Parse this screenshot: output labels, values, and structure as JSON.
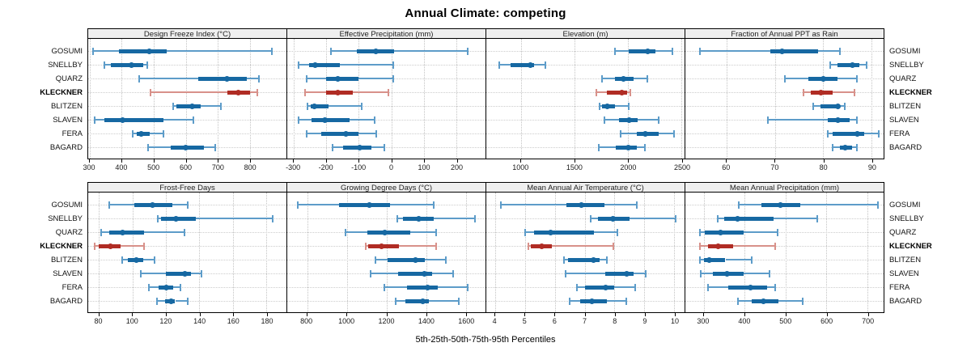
{
  "title": "Annual Climate: competing",
  "xlabel": "5th-25th-50th-75th-95th Percentiles",
  "sites": [
    "GOSUMI",
    "SNELLBY",
    "QUARZ",
    "KLECKNER",
    "BLITZEN",
    "SLAVEN",
    "FERA",
    "BAGARD"
  ],
  "highlight_site": "KLECKNER",
  "percentiles": [
    "5th",
    "25th",
    "50th",
    "75th",
    "95th"
  ],
  "colors": {
    "blue_dark": "#1668a2",
    "blue_light": "#5d9cc9",
    "red_dark": "#b02c24",
    "red_light": "#d8918a",
    "header_bg": "#efefef",
    "grid": "#c8c8c8",
    "border": "#000000"
  },
  "chart_data": [
    {
      "type": "percentile-dotplot",
      "title": "Design Freeze Index (°C)",
      "axis": {
        "min": 295,
        "max": 915,
        "ticks": [
          300,
          400,
          500,
          600,
          700,
          800
        ]
      },
      "series": [
        {
          "site": "GOSUMI",
          "values": [
            310,
            390,
            485,
            540,
            870
          ]
        },
        {
          "site": "SNELLBY",
          "values": [
            345,
            365,
            430,
            468,
            480
          ]
        },
        {
          "site": "QUARZ",
          "values": [
            455,
            640,
            730,
            790,
            830
          ]
        },
        {
          "site": "KLECKNER",
          "values": [
            490,
            730,
            764,
            800,
            825
          ]
        },
        {
          "site": "BLITZEN",
          "values": [
            560,
            572,
            620,
            648,
            710
          ]
        },
        {
          "site": "SLAVEN",
          "values": [
            315,
            345,
            403,
            530,
            625
          ]
        },
        {
          "site": "FERA",
          "values": [
            435,
            448,
            460,
            487,
            530
          ]
        },
        {
          "site": "BAGARD",
          "values": [
            482,
            553,
            600,
            658,
            693
          ]
        }
      ]
    },
    {
      "type": "percentile-dotplot",
      "title": "Effective Precipitation (mm)",
      "axis": {
        "min": -320,
        "max": 290,
        "ticks": [
          -300,
          -200,
          -100,
          0,
          100,
          200
        ]
      },
      "series": [
        {
          "site": "GOSUMI",
          "values": [
            -185,
            -105,
            -48,
            8,
            235
          ]
        },
        {
          "site": "SNELLBY",
          "values": [
            -285,
            -252,
            -235,
            -158,
            5
          ]
        },
        {
          "site": "QUARZ",
          "values": [
            -260,
            -200,
            -165,
            -100,
            5
          ]
        },
        {
          "site": "KLECKNER",
          "values": [
            -265,
            -200,
            -165,
            -118,
            -8
          ]
        },
        {
          "site": "BLITZEN",
          "values": [
            -258,
            -248,
            -236,
            -193,
            -91
          ]
        },
        {
          "site": "SLAVEN",
          "values": [
            -285,
            -245,
            -205,
            -128,
            -52
          ]
        },
        {
          "site": "FERA",
          "values": [
            -260,
            -215,
            -140,
            -100,
            -45
          ]
        },
        {
          "site": "BAGARD",
          "values": [
            -180,
            -148,
            -98,
            -62,
            -22
          ]
        }
      ]
    },
    {
      "type": "percentile-dotplot",
      "title": "Elevation (m)",
      "axis": {
        "min": 675,
        "max": 2530,
        "ticks": [
          1000,
          1500,
          2000,
          2500
        ]
      },
      "series": [
        {
          "site": "GOSUMI",
          "values": [
            1880,
            2005,
            2185,
            2255,
            2415
          ]
        },
        {
          "site": "SNELLBY",
          "values": [
            795,
            900,
            1085,
            1125,
            1225
          ]
        },
        {
          "site": "QUARZ",
          "values": [
            1760,
            1880,
            1960,
            2055,
            2180
          ]
        },
        {
          "site": "KLECKNER",
          "values": [
            1705,
            1800,
            1940,
            1990,
            2025
          ]
        },
        {
          "site": "BLITZEN",
          "values": [
            1735,
            1755,
            1810,
            1880,
            2010
          ]
        },
        {
          "site": "SLAVEN",
          "values": [
            1780,
            1920,
            2010,
            2090,
            2290
          ]
        },
        {
          "site": "FERA",
          "values": [
            1930,
            2085,
            2160,
            2285,
            2435
          ]
        },
        {
          "site": "BAGARD",
          "values": [
            1725,
            1890,
            2000,
            2080,
            2160
          ]
        }
      ]
    },
    {
      "type": "percentile-dotplot",
      "title": "Fraction of Annual PPT as Rain",
      "axis": {
        "min": 51.5,
        "max": 92.5,
        "ticks": [
          60,
          70,
          80,
          90
        ]
      },
      "series": [
        {
          "site": "GOSUMI",
          "values": [
            54.5,
            69,
            71.5,
            79,
            83.5
          ]
        },
        {
          "site": "SNELLBY",
          "values": [
            81.5,
            83,
            86,
            87.5,
            89
          ]
        },
        {
          "site": "QUARZ",
          "values": [
            72,
            77,
            80,
            83,
            87
          ]
        },
        {
          "site": "KLECKNER",
          "values": [
            76,
            77.5,
            79.5,
            82,
            86.5
          ]
        },
        {
          "site": "BLITZEN",
          "values": [
            78,
            79.5,
            83,
            83.5,
            84.5
          ]
        },
        {
          "site": "SLAVEN",
          "values": [
            68.5,
            81,
            83,
            85.5,
            87
          ]
        },
        {
          "site": "FERA",
          "values": [
            81,
            82,
            87,
            88.5,
            91.5
          ]
        },
        {
          "site": "BAGARD",
          "values": [
            82,
            83.5,
            84.5,
            86,
            87
          ]
        }
      ]
    },
    {
      "type": "percentile-dotplot",
      "title": "Frost-Free Days",
      "axis": {
        "min": 73.5,
        "max": 192,
        "ticks": [
          80,
          100,
          120,
          140,
          160,
          180
        ]
      },
      "series": [
        {
          "site": "GOSUMI",
          "values": [
            86,
            101,
            112,
            124,
            133
          ]
        },
        {
          "site": "SNELLBY",
          "values": [
            115,
            117,
            126,
            138,
            184
          ]
        },
        {
          "site": "QUARZ",
          "values": [
            81,
            86,
            94,
            107,
            131
          ]
        },
        {
          "site": "KLECKNER",
          "values": [
            77.5,
            80,
            87,
            93,
            107
          ]
        },
        {
          "site": "BLITZEN",
          "values": [
            94,
            97,
            102.5,
            106.5,
            113
          ]
        },
        {
          "site": "SLAVEN",
          "values": [
            105,
            120,
            131.5,
            135,
            141
          ]
        },
        {
          "site": "FERA",
          "values": [
            110,
            115.5,
            120,
            124.5,
            128.5
          ]
        },
        {
          "site": "BAGARD",
          "values": [
            114.5,
            119.5,
            123,
            125.5,
            133
          ]
        }
      ]
    },
    {
      "type": "percentile-dotplot",
      "title": "Growing Degree Days (°C)",
      "axis": {
        "min": 700,
        "max": 1700,
        "ticks": [
          800,
          1000,
          1200,
          1400,
          1600
        ]
      },
      "series": [
        {
          "site": "GOSUMI",
          "values": [
            755,
            960,
            1115,
            1220,
            1440
          ]
        },
        {
          "site": "SNELLBY",
          "values": [
            1255,
            1285,
            1365,
            1440,
            1645
          ]
        },
        {
          "site": "QUARZ",
          "values": [
            995,
            1105,
            1190,
            1320,
            1450
          ]
        },
        {
          "site": "KLECKNER",
          "values": [
            1095,
            1110,
            1175,
            1265,
            1450
          ]
        },
        {
          "site": "BLITZEN",
          "values": [
            1145,
            1205,
            1345,
            1395,
            1500
          ]
        },
        {
          "site": "SLAVEN",
          "values": [
            1120,
            1260,
            1390,
            1430,
            1535
          ]
        },
        {
          "site": "FERA",
          "values": [
            1190,
            1305,
            1410,
            1460,
            1610
          ]
        },
        {
          "site": "BAGARD",
          "values": [
            1245,
            1295,
            1385,
            1415,
            1565
          ]
        }
      ]
    },
    {
      "type": "percentile-dotplot",
      "title": "Mean Annual Air Temperature (°C)",
      "axis": {
        "min": 3.7,
        "max": 10.35,
        "ticks": [
          4,
          5,
          6,
          7,
          8,
          9,
          10
        ]
      },
      "series": [
        {
          "site": "GOSUMI",
          "values": [
            4.2,
            6.4,
            6.9,
            7.65,
            8.75
          ]
        },
        {
          "site": "SNELLBY",
          "values": [
            7.2,
            7.45,
            7.95,
            8.5,
            10.05
          ]
        },
        {
          "site": "QUARZ",
          "values": [
            5.0,
            5.3,
            5.85,
            7.3,
            8.1
          ]
        },
        {
          "site": "KLECKNER",
          "values": [
            5.1,
            5.2,
            5.55,
            5.9,
            7.95
          ]
        },
        {
          "site": "BLITZEN",
          "values": [
            6.3,
            6.45,
            7.3,
            7.5,
            7.75
          ]
        },
        {
          "site": "SLAVEN",
          "values": [
            6.35,
            7.7,
            8.4,
            8.65,
            9.05
          ]
        },
        {
          "site": "FERA",
          "values": [
            6.75,
            7.0,
            7.7,
            8.0,
            8.7
          ]
        },
        {
          "site": "BAGARD",
          "values": [
            6.5,
            6.85,
            7.25,
            7.75,
            8.4
          ]
        }
      ]
    },
    {
      "type": "percentile-dotplot",
      "title": "Mean Annual Precipitation (mm)",
      "axis": {
        "min": 255,
        "max": 740,
        "ticks": [
          300,
          400,
          500,
          600,
          700
        ]
      },
      "series": [
        {
          "site": "GOSUMI",
          "values": [
            386,
            441,
            487,
            537,
            726
          ]
        },
        {
          "site": "SNELLBY",
          "values": [
            335,
            350,
            382,
            470,
            578
          ]
        },
        {
          "site": "QUARZ",
          "values": [
            291,
            302,
            342,
            397,
            480
          ]
        },
        {
          "site": "KLECKNER",
          "values": [
            290,
            310,
            336,
            372,
            474
          ]
        },
        {
          "site": "BLITZEN",
          "values": [
            291,
            300,
            313,
            353,
            417
          ]
        },
        {
          "site": "SLAVEN",
          "values": [
            292,
            323,
            357,
            397,
            460
          ]
        },
        {
          "site": "FERA",
          "values": [
            311,
            360,
            415,
            455,
            475
          ]
        },
        {
          "site": "BAGARD",
          "values": [
            383,
            417,
            447,
            483,
            542
          ]
        }
      ]
    }
  ]
}
